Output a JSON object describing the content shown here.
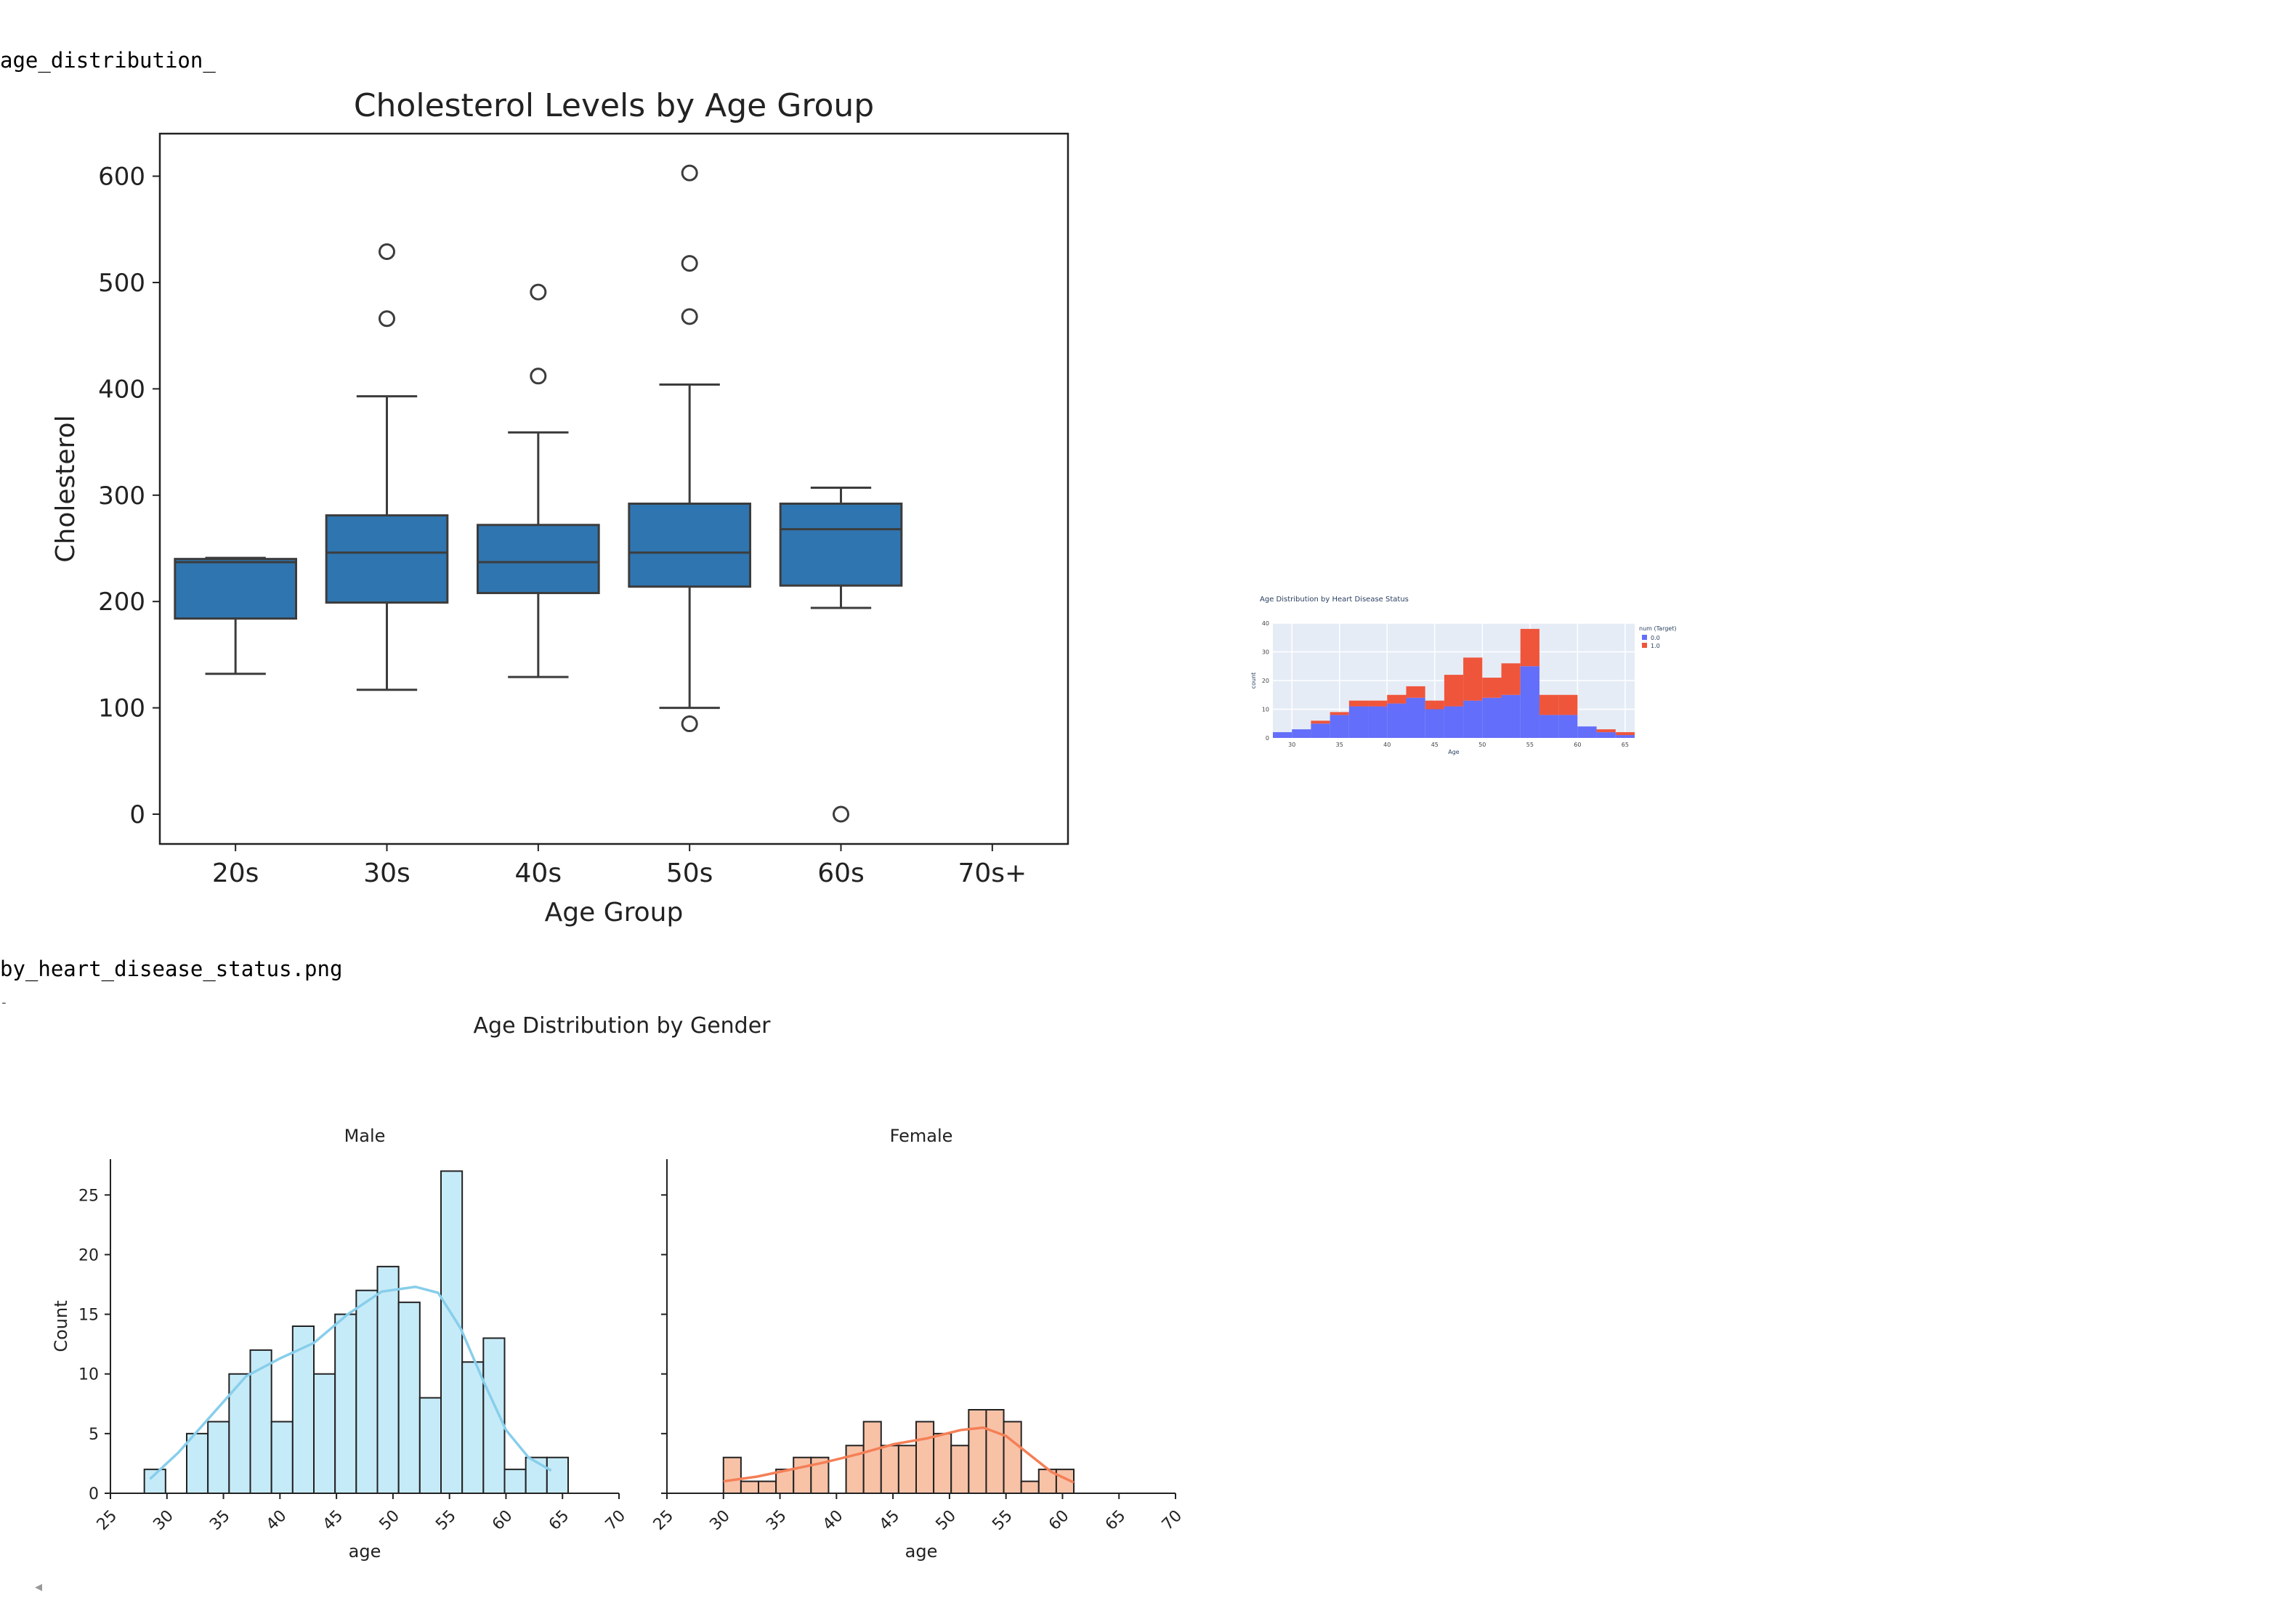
{
  "page": {
    "filename_top": "age_distribution_",
    "filename_bottom": "by_heart_disease_status.png",
    "stray_mark": "-",
    "scroll_arrow": "◂"
  },
  "colors": {
    "box_fill": "#2f75b0",
    "box_line": "#3c3c3c",
    "male_fill": "#c6ebf8",
    "male_kde": "#87ceeb",
    "female_fill": "#f8c2a7",
    "female_kde": "#f47f56",
    "plotly_bg": "#e5ecf6",
    "plotly_blue": "#636efa",
    "plotly_red": "#ef553b"
  },
  "chart_data": [
    {
      "id": "boxplot",
      "type": "box",
      "title": "Cholesterol Levels by Age Group",
      "xlabel": "Age Group",
      "ylabel": "Cholesterol",
      "categories": [
        "20s",
        "30s",
        "40s",
        "50s",
        "60s",
        "70s+"
      ],
      "ylim": [
        -28,
        640
      ],
      "yticks": [
        0,
        100,
        200,
        300,
        400,
        500,
        600
      ],
      "boxes": [
        {
          "category": "20s",
          "whisker_low": 132,
          "q1": 184,
          "median": 237,
          "q3": 240,
          "whisker_high": 241,
          "outliers": []
        },
        {
          "category": "30s",
          "whisker_low": 117,
          "q1": 199,
          "median": 246,
          "q3": 281,
          "whisker_high": 393,
          "outliers": [
            529,
            466
          ]
        },
        {
          "category": "40s",
          "whisker_low": 129,
          "q1": 208,
          "median": 237,
          "q3": 272,
          "whisker_high": 359,
          "outliers": [
            491,
            412
          ]
        },
        {
          "category": "50s",
          "whisker_low": 100,
          "q1": 214,
          "median": 246,
          "q3": 292,
          "whisker_high": 404,
          "outliers": [
            603,
            518,
            468,
            85
          ]
        },
        {
          "category": "60s",
          "whisker_low": 194,
          "q1": 215,
          "median": 268,
          "q3": 292,
          "whisker_high": 307,
          "outliers": [
            0
          ]
        },
        {
          "category": "70s+",
          "whisker_low": null,
          "q1": null,
          "median": null,
          "q3": null,
          "whisker_high": null,
          "outliers": []
        }
      ]
    },
    {
      "id": "plotly_hist",
      "type": "bar",
      "stacked": true,
      "title": "Age Distribution by Heart Disease Status",
      "xlabel": "Age",
      "ylabel": "count",
      "legend_title": "num (Target)",
      "legend_position": "top-right",
      "xlim": [
        28,
        66
      ],
      "ylim": [
        0,
        40
      ],
      "yticks": [
        0,
        10,
        20,
        30,
        40
      ],
      "xticks": [
        30,
        35,
        40,
        45,
        50,
        55,
        60,
        65
      ],
      "bin_width": 2,
      "x": [
        28,
        30,
        32,
        34,
        36,
        38,
        40,
        42,
        44,
        46,
        48,
        50,
        52,
        54,
        56,
        58,
        60,
        62,
        64
      ],
      "series": [
        {
          "name": "0.0",
          "values": [
            2,
            3,
            5,
            8,
            11,
            11,
            12,
            14,
            10,
            11,
            13,
            14,
            15,
            25,
            8,
            8,
            4,
            2,
            1
          ]
        },
        {
          "name": "1.0",
          "values": [
            0,
            0,
            1,
            1,
            2,
            2,
            3,
            4,
            3,
            11,
            15,
            7,
            11,
            13,
            7,
            7,
            0,
            1,
            1
          ]
        }
      ]
    },
    {
      "id": "gender_hist",
      "type": "bar",
      "suptitle": "Age Distribution by Gender",
      "panels": [
        {
          "title": "Male",
          "xlabel": "age",
          "ylabel": "Count",
          "xlim": [
            25,
            70
          ],
          "ylim": [
            0,
            28
          ],
          "xticks": [
            25,
            30,
            35,
            40,
            45,
            50,
            55,
            60,
            65,
            70
          ],
          "yticks": [
            0,
            5,
            10,
            15,
            20,
            25
          ],
          "bins_start": 28,
          "bin_width": 1.875,
          "values": [
            2,
            0,
            5,
            6,
            10,
            12,
            6,
            14,
            10,
            15,
            17,
            19,
            16,
            8,
            27,
            11,
            13,
            2,
            3,
            3
          ],
          "kde": [
            [
              28.5,
              1.2
            ],
            [
              31,
              3.4
            ],
            [
              34,
              6.6
            ],
            [
              37,
              9.8
            ],
            [
              40,
              11.3
            ],
            [
              43,
              12.6
            ],
            [
              46,
              15.0
            ],
            [
              49,
              16.9
            ],
            [
              52,
              17.3
            ],
            [
              54,
              16.8
            ],
            [
              56,
              13.8
            ],
            [
              58,
              9.4
            ],
            [
              60,
              5.3
            ],
            [
              62,
              3.0
            ],
            [
              64,
              1.9
            ]
          ]
        },
        {
          "title": "Female",
          "xlabel": "age",
          "ylabel": "",
          "xlim": [
            25,
            70
          ],
          "ylim": [
            0,
            28
          ],
          "xticks": [
            25,
            30,
            35,
            40,
            45,
            50,
            55,
            60,
            65,
            70
          ],
          "yticks": [
            0,
            5,
            10,
            15,
            20,
            25
          ],
          "bins_start": 30,
          "bin_width": 1.55,
          "values": [
            3,
            1,
            1,
            2,
            3,
            3,
            0,
            4,
            6,
            4,
            4,
            6,
            5,
            4,
            7,
            7,
            6,
            1,
            2,
            2
          ],
          "kde": [
            [
              30,
              1.0
            ],
            [
              33,
              1.4
            ],
            [
              36,
              2.0
            ],
            [
              39,
              2.6
            ],
            [
              42,
              3.3
            ],
            [
              45,
              4.1
            ],
            [
              48,
              4.6
            ],
            [
              51,
              5.3
            ],
            [
              53,
              5.5
            ],
            [
              55,
              4.8
            ],
            [
              57,
              3.3
            ],
            [
              59,
              1.8
            ],
            [
              61,
              0.9
            ]
          ]
        }
      ]
    }
  ]
}
